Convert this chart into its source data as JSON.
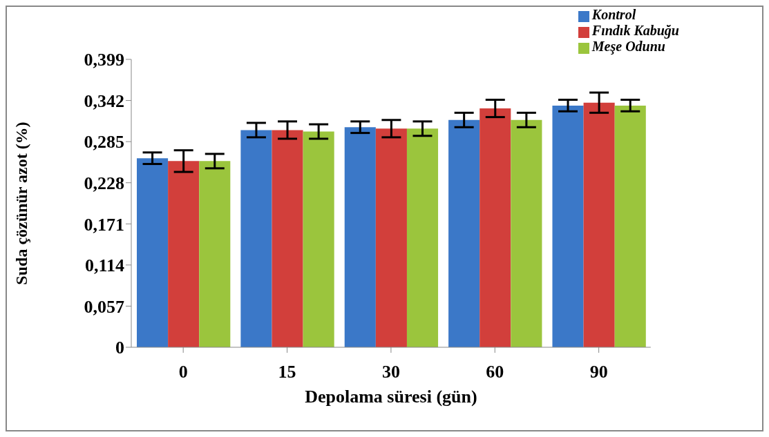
{
  "chart_data": {
    "type": "bar",
    "xlabel": "Depolama süresi (gün)",
    "ylabel": "Suda çözünür azot (%)",
    "categories": [
      "0",
      "15",
      "30",
      "60",
      "90"
    ],
    "series": [
      {
        "name": "Kontrol",
        "color": "#3b78c8",
        "values": [
          0.262,
          0.301,
          0.305,
          0.315,
          0.335
        ],
        "errors": [
          0.008,
          0.01,
          0.008,
          0.01,
          0.008
        ]
      },
      {
        "name": "Fındık Kabuğu",
        "color": "#d23f3b",
        "values": [
          0.258,
          0.301,
          0.303,
          0.331,
          0.339
        ],
        "errors": [
          0.015,
          0.012,
          0.012,
          0.012,
          0.014
        ]
      },
      {
        "name": "Meşe Odunu",
        "color": "#9bc53d",
        "values": [
          0.258,
          0.299,
          0.303,
          0.315,
          0.335
        ],
        "errors": [
          0.01,
          0.01,
          0.01,
          0.01,
          0.008
        ]
      }
    ],
    "ylim": [
      0,
      0.399
    ],
    "yticks": [
      0,
      {
        "value": 0.057,
        "label": "0,057"
      },
      {
        "value": 0.114,
        "label": "0,114"
      },
      {
        "value": 0.171,
        "label": "0,171"
      },
      {
        "value": 0.228,
        "label": "0,228"
      },
      {
        "value": 0.285,
        "label": "0,285"
      },
      {
        "value": 0.342,
        "label": "0,342"
      },
      {
        "value": 0.399,
        "label": "0,399"
      }
    ],
    "grid": false,
    "legend": "top right"
  }
}
